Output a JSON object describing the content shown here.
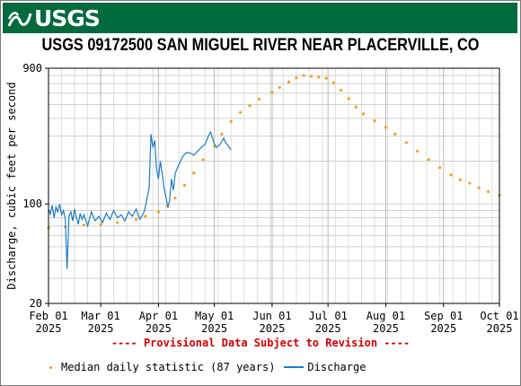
{
  "header": {
    "logo_text": "USGS"
  },
  "colors": {
    "banner": "#00693e",
    "median": "#f0a020",
    "discharge": "#1f7cbf",
    "revision": "#cc0000"
  },
  "chart_data": {
    "type": "line",
    "title": "USGS 09172500 SAN MIGUEL RIVER NEAR PLACERVILLE, CO",
    "ylabel": "Discharge, cubic feet per second",
    "xlabel": "",
    "y_scale": "log",
    "ylim": [
      20,
      900
    ],
    "xlim": [
      "2025-02-01",
      "2025-10-01"
    ],
    "y_ticks": [
      {
        "value": 20,
        "label": "20"
      },
      {
        "value": 100,
        "label": "100"
      },
      {
        "value": 900,
        "label": "900"
      }
    ],
    "x_ticks": [
      {
        "date": "2025-02-01",
        "month": "Feb 01",
        "year": "2025"
      },
      {
        "date": "2025-03-01",
        "month": "Mar 01",
        "year": "2025"
      },
      {
        "date": "2025-04-01",
        "month": "Apr 01",
        "year": "2025"
      },
      {
        "date": "2025-05-01",
        "month": "May 01",
        "year": "2025"
      },
      {
        "date": "2025-06-01",
        "month": "Jun 01",
        "year": "2025"
      },
      {
        "date": "2025-07-01",
        "month": "Jul 01",
        "year": "2025"
      },
      {
        "date": "2025-08-01",
        "month": "Aug 01",
        "year": "2025"
      },
      {
        "date": "2025-09-01",
        "month": "Sep 01",
        "year": "2025"
      },
      {
        "date": "2025-10-01",
        "month": "Oct 01",
        "year": "2025"
      }
    ],
    "grid": true,
    "legend_position": "bottom",
    "series": [
      {
        "name": "Median daily statistic (87 years)",
        "style": "dots",
        "points": [
          [
            "2025-02-01",
            68
          ],
          [
            "2025-02-10",
            69
          ],
          [
            "2025-02-20",
            71
          ],
          [
            "2025-03-01",
            72
          ],
          [
            "2025-03-10",
            74
          ],
          [
            "2025-03-20",
            78
          ],
          [
            "2025-03-25",
            82
          ],
          [
            "2025-04-01",
            88
          ],
          [
            "2025-04-06",
            96
          ],
          [
            "2025-04-10",
            110
          ],
          [
            "2025-04-15",
            135
          ],
          [
            "2025-04-20",
            165
          ],
          [
            "2025-04-25",
            205
          ],
          [
            "2025-05-01",
            255
          ],
          [
            "2025-05-05",
            310
          ],
          [
            "2025-05-10",
            380
          ],
          [
            "2025-05-15",
            440
          ],
          [
            "2025-05-20",
            490
          ],
          [
            "2025-05-25",
            545
          ],
          [
            "2025-06-01",
            610
          ],
          [
            "2025-06-05",
            660
          ],
          [
            "2025-06-10",
            720
          ],
          [
            "2025-06-14",
            770
          ],
          [
            "2025-06-18",
            800
          ],
          [
            "2025-06-22",
            790
          ],
          [
            "2025-06-26",
            780
          ],
          [
            "2025-06-30",
            765
          ],
          [
            "2025-07-04",
            710
          ],
          [
            "2025-07-08",
            630
          ],
          [
            "2025-07-12",
            550
          ],
          [
            "2025-07-16",
            480
          ],
          [
            "2025-07-20",
            430
          ],
          [
            "2025-07-26",
            385
          ],
          [
            "2025-08-01",
            345
          ],
          [
            "2025-08-06",
            310
          ],
          [
            "2025-08-12",
            270
          ],
          [
            "2025-08-18",
            235
          ],
          [
            "2025-08-24",
            205
          ],
          [
            "2025-08-30",
            180
          ],
          [
            "2025-09-05",
            160
          ],
          [
            "2025-09-10",
            148
          ],
          [
            "2025-09-15",
            140
          ],
          [
            "2025-09-20",
            130
          ],
          [
            "2025-09-25",
            122
          ],
          [
            "2025-10-01",
            115
          ]
        ]
      },
      {
        "name": "Discharge",
        "style": "line",
        "points": [
          [
            "2025-02-01",
            92
          ],
          [
            "2025-02-02",
            85
          ],
          [
            "2025-02-03",
            98
          ],
          [
            "2025-02-04",
            80
          ],
          [
            "2025-02-05",
            95
          ],
          [
            "2025-02-06",
            88
          ],
          [
            "2025-02-07",
            100
          ],
          [
            "2025-02-08",
            84
          ],
          [
            "2025-02-09",
            90
          ],
          [
            "2025-02-10",
            78
          ],
          [
            "2025-02-11",
            35
          ],
          [
            "2025-02-12",
            82
          ],
          [
            "2025-02-13",
            88
          ],
          [
            "2025-02-14",
            76
          ],
          [
            "2025-02-15",
            92
          ],
          [
            "2025-02-16",
            80
          ],
          [
            "2025-02-17",
            72
          ],
          [
            "2025-02-18",
            86
          ],
          [
            "2025-02-19",
            78
          ],
          [
            "2025-02-20",
            84
          ],
          [
            "2025-02-22",
            70
          ],
          [
            "2025-02-24",
            88
          ],
          [
            "2025-02-26",
            76
          ],
          [
            "2025-02-28",
            82
          ],
          [
            "2025-03-02",
            74
          ],
          [
            "2025-03-04",
            86
          ],
          [
            "2025-03-06",
            78
          ],
          [
            "2025-03-08",
            90
          ],
          [
            "2025-03-10",
            80
          ],
          [
            "2025-03-12",
            84
          ],
          [
            "2025-03-14",
            76
          ],
          [
            "2025-03-16",
            88
          ],
          [
            "2025-03-18",
            82
          ],
          [
            "2025-03-20",
            92
          ],
          [
            "2025-03-22",
            78
          ],
          [
            "2025-03-24",
            86
          ],
          [
            "2025-03-25",
            96
          ],
          [
            "2025-03-27",
            130
          ],
          [
            "2025-03-28",
            310
          ],
          [
            "2025-03-29",
            250
          ],
          [
            "2025-03-30",
            280
          ],
          [
            "2025-03-31",
            175
          ],
          [
            "2025-04-01",
            150
          ],
          [
            "2025-04-02",
            200
          ],
          [
            "2025-04-03",
            165
          ],
          [
            "2025-04-04",
            130
          ],
          [
            "2025-04-05",
            112
          ],
          [
            "2025-04-06",
            95
          ],
          [
            "2025-04-07",
            105
          ],
          [
            "2025-04-08",
            150
          ],
          [
            "2025-04-09",
            125
          ],
          [
            "2025-04-10",
            165
          ],
          [
            "2025-04-12",
            190
          ],
          [
            "2025-04-14",
            215
          ],
          [
            "2025-04-16",
            230
          ],
          [
            "2025-04-18",
            228
          ],
          [
            "2025-04-20",
            220
          ],
          [
            "2025-04-22",
            235
          ],
          [
            "2025-04-24",
            250
          ],
          [
            "2025-04-26",
            262
          ],
          [
            "2025-04-28",
            305
          ],
          [
            "2025-04-29",
            320
          ],
          [
            "2025-04-30",
            290
          ],
          [
            "2025-05-01",
            265
          ],
          [
            "2025-05-02",
            250
          ],
          [
            "2025-05-03",
            255
          ],
          [
            "2025-05-04",
            262
          ],
          [
            "2025-05-05",
            275
          ],
          [
            "2025-05-06",
            290
          ],
          [
            "2025-05-07",
            270
          ],
          [
            "2025-05-08",
            262
          ],
          [
            "2025-05-09",
            250
          ],
          [
            "2025-05-10",
            240
          ]
        ]
      }
    ]
  },
  "footer": {
    "revision_text": "---- Provisional Data Subject to Revision ----",
    "legend_median": "Median daily statistic (87 years)",
    "legend_discharge": "Discharge"
  }
}
